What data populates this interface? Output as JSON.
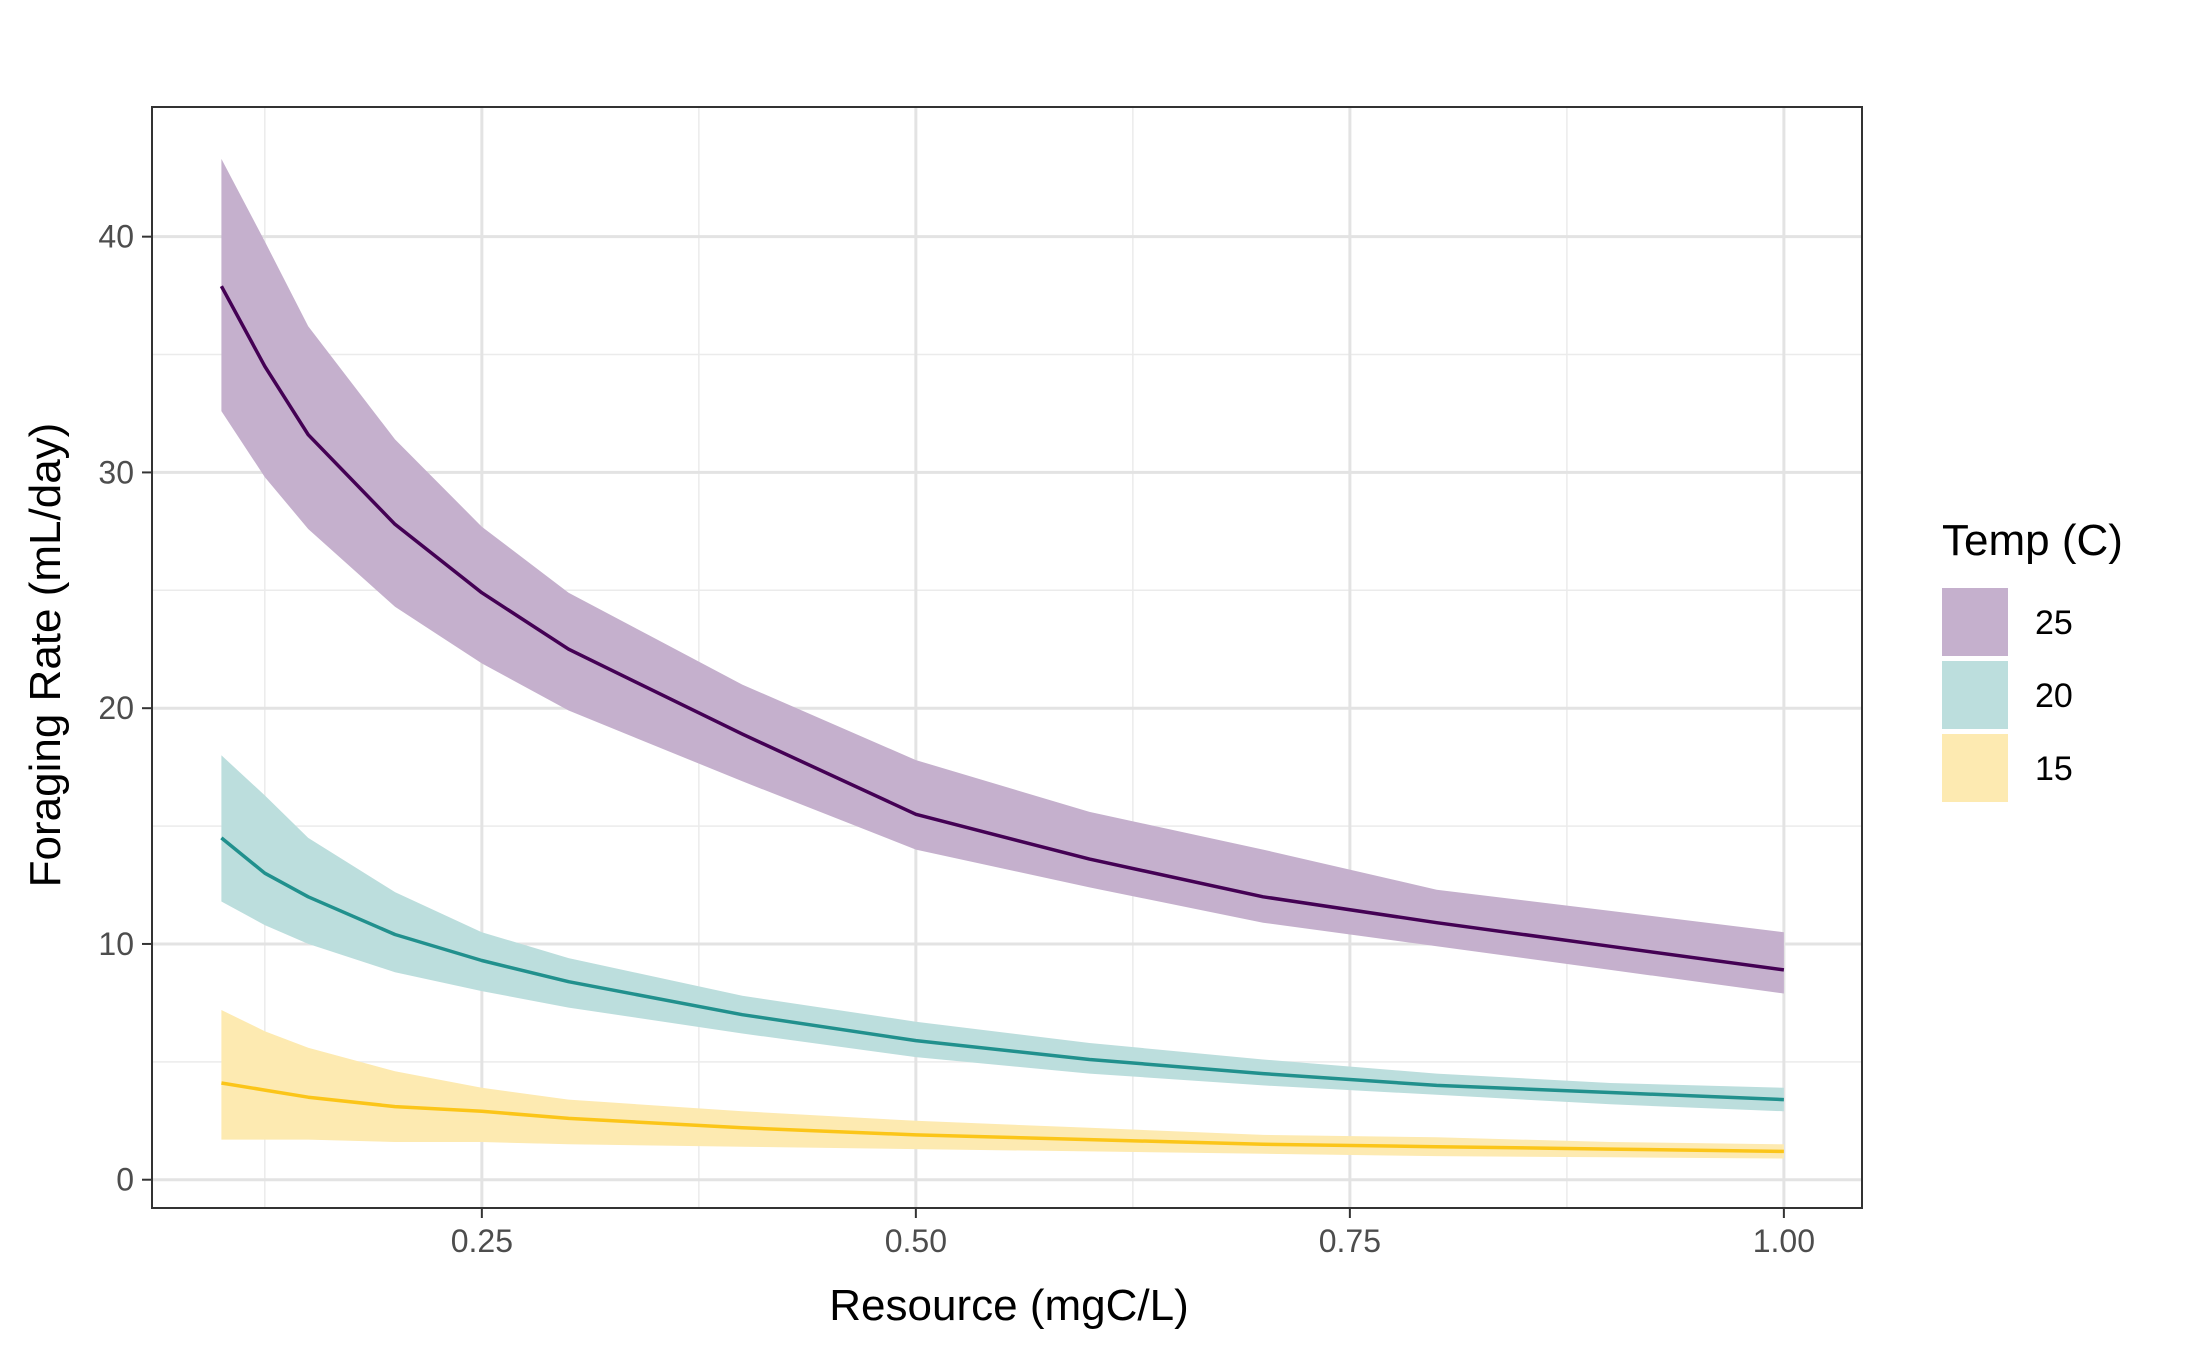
{
  "chart_data": {
    "type": "line",
    "xlabel": "Resource (mgC/L)",
    "ylabel": "Foraging Rate (mL/day)",
    "xlim": [
      0.06,
      1.045
    ],
    "ylim": [
      -1.2,
      45.5
    ],
    "x_ticks": [
      0.25,
      0.5,
      0.75,
      1.0
    ],
    "x_tick_labels": [
      "0.25",
      "0.50",
      "0.75",
      "1.00"
    ],
    "y_ticks": [
      0,
      10,
      20,
      30,
      40
    ],
    "y_tick_labels": [
      "0",
      "10",
      "20",
      "30",
      "40"
    ],
    "grid": true,
    "legend_title": "Temp (C)",
    "legend_position": "right",
    "series": [
      {
        "name": "25",
        "color": "#440154",
        "ribbon_color": "#c5b0cd",
        "x": [
          0.1,
          0.125,
          0.15,
          0.2,
          0.25,
          0.3,
          0.4,
          0.5,
          0.6,
          0.7,
          0.8,
          0.9,
          1.0
        ],
        "y": [
          37.9,
          34.5,
          31.6,
          27.8,
          24.9,
          22.5,
          18.9,
          15.5,
          13.6,
          12.0,
          10.9,
          9.9,
          8.9
        ],
        "lower": [
          32.6,
          29.8,
          27.6,
          24.3,
          21.9,
          19.9,
          16.9,
          14.0,
          12.4,
          10.9,
          9.9,
          8.9,
          7.9
        ],
        "upper": [
          43.3,
          39.8,
          36.2,
          31.4,
          27.7,
          24.9,
          21.0,
          17.8,
          15.6,
          14.0,
          12.3,
          11.4,
          10.5
        ]
      },
      {
        "name": "20",
        "color": "#21908d",
        "ribbon_color": "#bcdedd",
        "x": [
          0.1,
          0.125,
          0.15,
          0.2,
          0.25,
          0.3,
          0.4,
          0.5,
          0.6,
          0.7,
          0.8,
          0.9,
          1.0
        ],
        "y": [
          14.5,
          13.0,
          12.0,
          10.4,
          9.3,
          8.4,
          7.0,
          5.9,
          5.1,
          4.5,
          4.0,
          3.7,
          3.4
        ],
        "lower": [
          11.8,
          10.8,
          10.0,
          8.8,
          8.0,
          7.3,
          6.2,
          5.2,
          4.5,
          4.0,
          3.6,
          3.2,
          2.9
        ],
        "upper": [
          18.0,
          16.3,
          14.5,
          12.2,
          10.5,
          9.4,
          7.8,
          6.7,
          5.8,
          5.1,
          4.5,
          4.1,
          3.9
        ]
      },
      {
        "name": "15",
        "color": "#fbc519",
        "ribbon_color": "#fdeab1",
        "x": [
          0.1,
          0.125,
          0.15,
          0.2,
          0.25,
          0.3,
          0.4,
          0.5,
          0.6,
          0.7,
          0.8,
          0.9,
          1.0
        ],
        "y": [
          4.1,
          3.8,
          3.5,
          3.1,
          2.9,
          2.6,
          2.2,
          1.9,
          1.7,
          1.5,
          1.4,
          1.3,
          1.2
        ],
        "lower": [
          1.7,
          1.7,
          1.7,
          1.6,
          1.6,
          1.5,
          1.4,
          1.3,
          1.2,
          1.1,
          1.0,
          0.95,
          0.9
        ],
        "upper": [
          7.2,
          6.3,
          5.6,
          4.6,
          3.9,
          3.4,
          2.9,
          2.5,
          2.2,
          1.9,
          1.8,
          1.6,
          1.5
        ]
      }
    ]
  }
}
